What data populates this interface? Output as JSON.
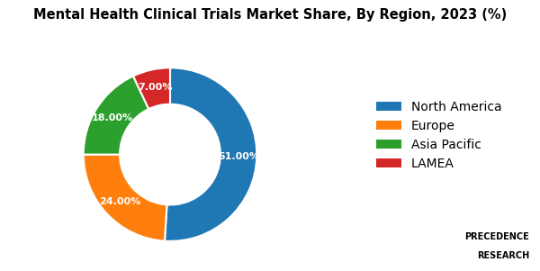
{
  "chart_data": {
    "type": "pie",
    "title": "Mental Health Clinical Trials Market Share, By Region, 2023 (%)",
    "categories": [
      "North America",
      "Europe",
      "Asia Pacific",
      "LAMEA"
    ],
    "values": [
      51.0,
      24.0,
      18.0,
      7.0
    ],
    "value_labels": [
      "51.00%",
      "24.00%",
      "18.00%",
      "7.00%"
    ],
    "data_labels": true,
    "legend": "right",
    "annotations": [
      "PRECEDENCE",
      "RESEARCH"
    ]
  }
}
